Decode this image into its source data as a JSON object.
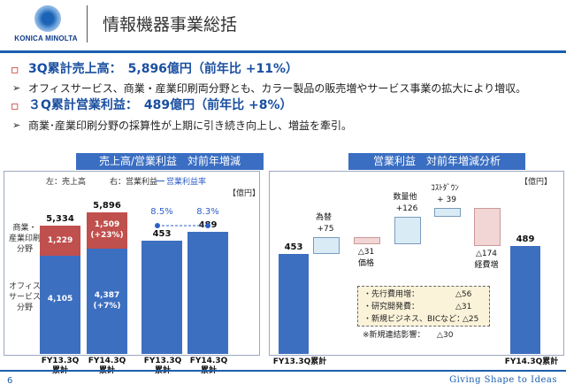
{
  "header": {
    "logo_text": "KONICA MINOLTA",
    "title": "情報機器事業総括"
  },
  "bullets": [
    {
      "heading": "3Q累計売上高：　5,896億円（前年比 +11%）",
      "detail": "オフィスサービス、商業・産業印刷両分野とも、カラー製品の販売増やサービス事業の拡大により増収。"
    },
    {
      "heading": "３Q累計営業利益：　489億円（前年比 +8%）",
      "detail": "商業･産業印刷分野の採算性が上期に引き続き向上し、増益を牽引。"
    }
  ],
  "left_panel": {
    "title": "売上高/営業利益　対前年増減",
    "legend_left": "左：売上高",
    "legend_right": "右：営業利益",
    "legend_line": "営業利益率",
    "unit": "【億円】",
    "seg_label_commercial": "商業・\n産業印刷\n分野",
    "seg_label_office": "オフィス\nサービス\n分野",
    "xlabels": [
      "FY13.3Q\n累計",
      "FY14.3Q\n累計",
      "FY13.3Q\n累計",
      "FY14.3Q\n累計"
    ]
  },
  "right_panel": {
    "title": "営業利益　対前年増減分析",
    "unit": "【億円】",
    "start_label": "FY13.3Q累計",
    "end_label": "FY14.3Q累計",
    "notes": [
      {
        "label": "・先行費用増：",
        "value": "△56"
      },
      {
        "label": "・研究開発費：",
        "value": "△31"
      },
      {
        "label": "・新規ビジネス、BICなど：",
        "value": "△25"
      }
    ],
    "note_extra": "※新規連結影響：　　△30"
  },
  "chart_data": [
    {
      "type": "bar",
      "title": "売上高/営業利益　対前年増減",
      "categories": [
        "FY13.3Q累計",
        "FY14.3Q累計"
      ],
      "sales": {
        "totals": [
          "5,334",
          "5,896"
        ],
        "series": [
          {
            "name": "オフィスサービス分野",
            "values": [
              4105,
              4387
            ],
            "labels": [
              "4,105",
              "4,387\n(+7%)"
            ],
            "color": "#3d6fc1"
          },
          {
            "name": "商業・産業印刷分野",
            "values": [
              1229,
              1509
            ],
            "labels": [
              "1,229",
              "1,509\n(+23%)"
            ],
            "color": "#c0504d"
          }
        ]
      },
      "operating_profit": {
        "values": [
          453,
          489
        ],
        "labels": [
          "453",
          "489"
        ],
        "margin": [
          "8.5%",
          "8.3%"
        ]
      }
    },
    {
      "type": "bar",
      "title": "営業利益　対前年増減分析",
      "steps": [
        {
          "label": "FY13.3Q累計",
          "value": 453,
          "display": "453",
          "kind": "total"
        },
        {
          "label": "為替",
          "value": 75,
          "display": "+75",
          "kind": "up"
        },
        {
          "label": "価格",
          "value": -31,
          "display": "△31",
          "kind": "down"
        },
        {
          "label": "数量他",
          "value": 126,
          "display": "+126",
          "kind": "up"
        },
        {
          "label": "ｺｽﾄﾀﾞｳﾝ",
          "value": 39,
          "display": "+ 39",
          "kind": "up"
        },
        {
          "label": "経費増",
          "value": -174,
          "display": "△174",
          "kind": "down"
        },
        {
          "label": "FY14.3Q累計",
          "value": 489,
          "display": "489",
          "kind": "total"
        }
      ]
    }
  ],
  "footer": {
    "page_number": "6",
    "tagline": "Giving Shape to Ideas"
  }
}
